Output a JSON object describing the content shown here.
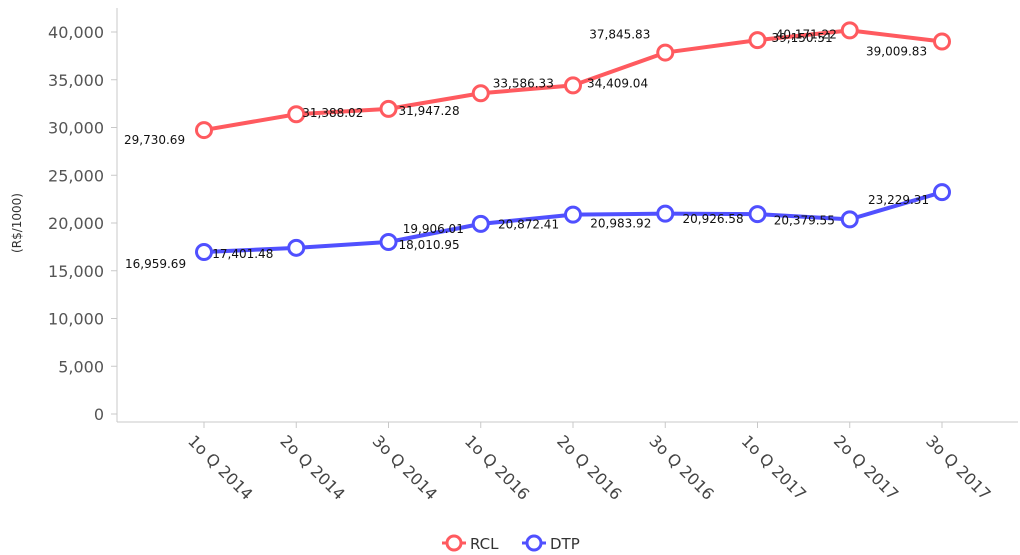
{
  "chart_data": {
    "type": "line",
    "categories": [
      "1o Q 2014",
      "2o Q 2014",
      "3o Q 2014",
      "1o Q 2016",
      "2o Q 2016",
      "3o Q 2016",
      "1o Q 2017",
      "2o Q 2017",
      "3o Q 2017"
    ],
    "series": [
      {
        "name": "RCL",
        "color": "#ff5a5f",
        "values": [
          29730.69,
          31388.02,
          31947.28,
          33586.33,
          34409.04,
          37845.83,
          39150.51,
          40171.22,
          39009.83
        ],
        "labels": [
          "29,730.69",
          "31,388.02",
          "31,947.28",
          "33,586.33",
          "34,409.04",
          "37,845.83",
          "39,150.51",
          "40,171.22",
          "39,009.83"
        ]
      },
      {
        "name": "DTP",
        "color": "#5050ff",
        "values": [
          16959.69,
          17401.48,
          18010.95,
          19906.01,
          20872.41,
          20983.92,
          20926.58,
          20379.55,
          23229.31
        ],
        "labels": [
          "16,959.69",
          "17,401.48",
          "18,010.95",
          "19,906.01",
          "20,872.41",
          "20,983.92",
          "20,926.58",
          "20,379.55",
          "23,229.31"
        ]
      }
    ],
    "ylabel": "(R$/1000)",
    "ylim": [
      0,
      40000
    ],
    "yticks": [
      0,
      5000,
      10000,
      15000,
      20000,
      25000,
      30000,
      35000,
      40000
    ],
    "ytick_labels": [
      "0",
      "5,000",
      "10,000",
      "15,000",
      "20,000",
      "25,000",
      "30,000",
      "35,000",
      "40,000"
    ],
    "grid": false,
    "legend_position": "bottom-center"
  }
}
